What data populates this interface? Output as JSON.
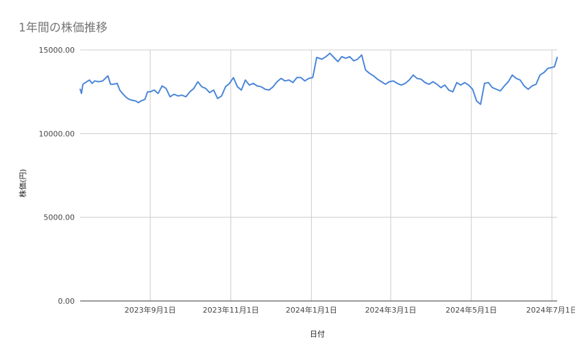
{
  "chart_data": {
    "type": "line",
    "title": "1年間の株価推移",
    "xlabel": "日付",
    "ylabel": "株価(円)",
    "ylim": [
      0,
      15000
    ],
    "xlim": [
      "2023-07-10",
      "2024-07-05"
    ],
    "grid": true,
    "line_color": "#4a86d8",
    "gridline_color": "#cccccc",
    "y_ticks": [
      {
        "value": 0,
        "label": "0.00"
      },
      {
        "value": 5000,
        "label": "5000.00"
      },
      {
        "value": 10000,
        "label": "10000.00"
      },
      {
        "value": 15000,
        "label": "15000.00"
      }
    ],
    "x_ticks": [
      {
        "date": "2023-09-01",
        "label": "2023年9月1日"
      },
      {
        "date": "2023-11-01",
        "label": "2023年11月1日"
      },
      {
        "date": "2024-01-01",
        "label": "2024年1月1日"
      },
      {
        "date": "2024-03-01",
        "label": "2024年3月1日"
      },
      {
        "date": "2024-05-01",
        "label": "2024年5月1日"
      },
      {
        "date": "2024-07-01",
        "label": "2024年7月1日"
      }
    ],
    "series": [
      {
        "x": [
          "2023-07-10",
          "2023-07-11",
          "2023-07-12",
          "2023-07-14",
          "2023-07-17",
          "2023-07-19",
          "2023-07-21",
          "2023-07-24",
          "2023-07-27",
          "2023-07-31",
          "2023-08-02",
          "2023-08-04",
          "2023-08-07",
          "2023-08-09",
          "2023-08-11",
          "2023-08-14",
          "2023-08-16",
          "2023-08-18",
          "2023-08-21",
          "2023-08-23",
          "2023-08-25",
          "2023-08-28",
          "2023-08-30",
          "2023-09-01",
          "2023-09-04",
          "2023-09-07",
          "2023-09-10",
          "2023-09-13",
          "2023-09-16",
          "2023-09-19",
          "2023-09-22",
          "2023-09-25",
          "2023-09-28",
          "2023-10-01",
          "2023-10-04",
          "2023-10-07",
          "2023-10-10",
          "2023-10-13",
          "2023-10-16",
          "2023-10-19",
          "2023-10-22",
          "2023-10-25",
          "2023-10-28",
          "2023-10-31",
          "2023-11-03",
          "2023-11-06",
          "2023-11-09",
          "2023-11-12",
          "2023-11-15",
          "2023-11-18",
          "2023-11-21",
          "2023-11-24",
          "2023-11-27",
          "2023-11-30",
          "2023-12-03",
          "2023-12-06",
          "2023-12-09",
          "2023-12-12",
          "2023-12-15",
          "2023-12-18",
          "2023-12-21",
          "2023-12-24",
          "2023-12-27",
          "2023-12-30",
          "2024-01-02",
          "2024-01-05",
          "2024-01-09",
          "2024-01-12",
          "2024-01-15",
          "2024-01-18",
          "2024-01-21",
          "2024-01-24",
          "2024-01-27",
          "2024-01-30",
          "2024-02-02",
          "2024-02-05",
          "2024-02-08",
          "2024-02-11",
          "2024-02-14",
          "2024-02-17",
          "2024-02-20",
          "2024-02-23",
          "2024-02-26",
          "2024-02-29",
          "2024-03-03",
          "2024-03-06",
          "2024-03-09",
          "2024-03-12",
          "2024-03-15",
          "2024-03-18",
          "2024-03-21",
          "2024-03-24",
          "2024-03-27",
          "2024-03-30",
          "2024-04-02",
          "2024-04-05",
          "2024-04-08",
          "2024-04-11",
          "2024-04-14",
          "2024-04-17",
          "2024-04-20",
          "2024-04-23",
          "2024-04-26",
          "2024-04-29",
          "2024-05-02",
          "2024-05-05",
          "2024-05-08",
          "2024-05-11",
          "2024-05-14",
          "2024-05-17",
          "2024-05-20",
          "2024-05-23",
          "2024-05-26",
          "2024-05-29",
          "2024-06-01",
          "2024-06-04",
          "2024-06-07",
          "2024-06-10",
          "2024-06-13",
          "2024-06-16",
          "2024-06-19",
          "2024-06-22",
          "2024-06-25",
          "2024-06-28",
          "2024-07-01",
          "2024-07-03",
          "2024-07-05"
        ],
        "values": [
          12650,
          12400,
          12950,
          13050,
          13200,
          13000,
          13150,
          13100,
          13150,
          13450,
          12950,
          12950,
          13000,
          12600,
          12400,
          12150,
          12050,
          12000,
          11950,
          11850,
          11950,
          12050,
          12500,
          12500,
          12600,
          12400,
          12850,
          12700,
          12200,
          12350,
          12250,
          12300,
          12200,
          12500,
          12700,
          13100,
          12800,
          12700,
          12450,
          12600,
          12100,
          12250,
          12800,
          13000,
          13350,
          12800,
          12600,
          13200,
          12900,
          13000,
          12850,
          12800,
          12650,
          12600,
          12800,
          13100,
          13300,
          13150,
          13200,
          13050,
          13350,
          13350,
          13150,
          13300,
          13350,
          14550,
          14450,
          14600,
          14800,
          14550,
          14300,
          14600,
          14500,
          14600,
          14350,
          14450,
          14700,
          13800,
          13600,
          13450,
          13250,
          13100,
          12950,
          13100,
          13150,
          13000,
          12900,
          13000,
          13200,
          13500,
          13300,
          13250,
          13050,
          12950,
          13100,
          12950,
          12750,
          12900,
          12600,
          12500,
          13050,
          12900,
          13050,
          12900,
          12650,
          11950,
          11750,
          13000,
          13050,
          12750,
          12650,
          12550,
          12850,
          13100,
          13500,
          13300,
          13200,
          12850,
          12650,
          12850,
          12950,
          13500,
          13650,
          13900,
          13950,
          14000,
          14550
        ]
      }
    ]
  }
}
